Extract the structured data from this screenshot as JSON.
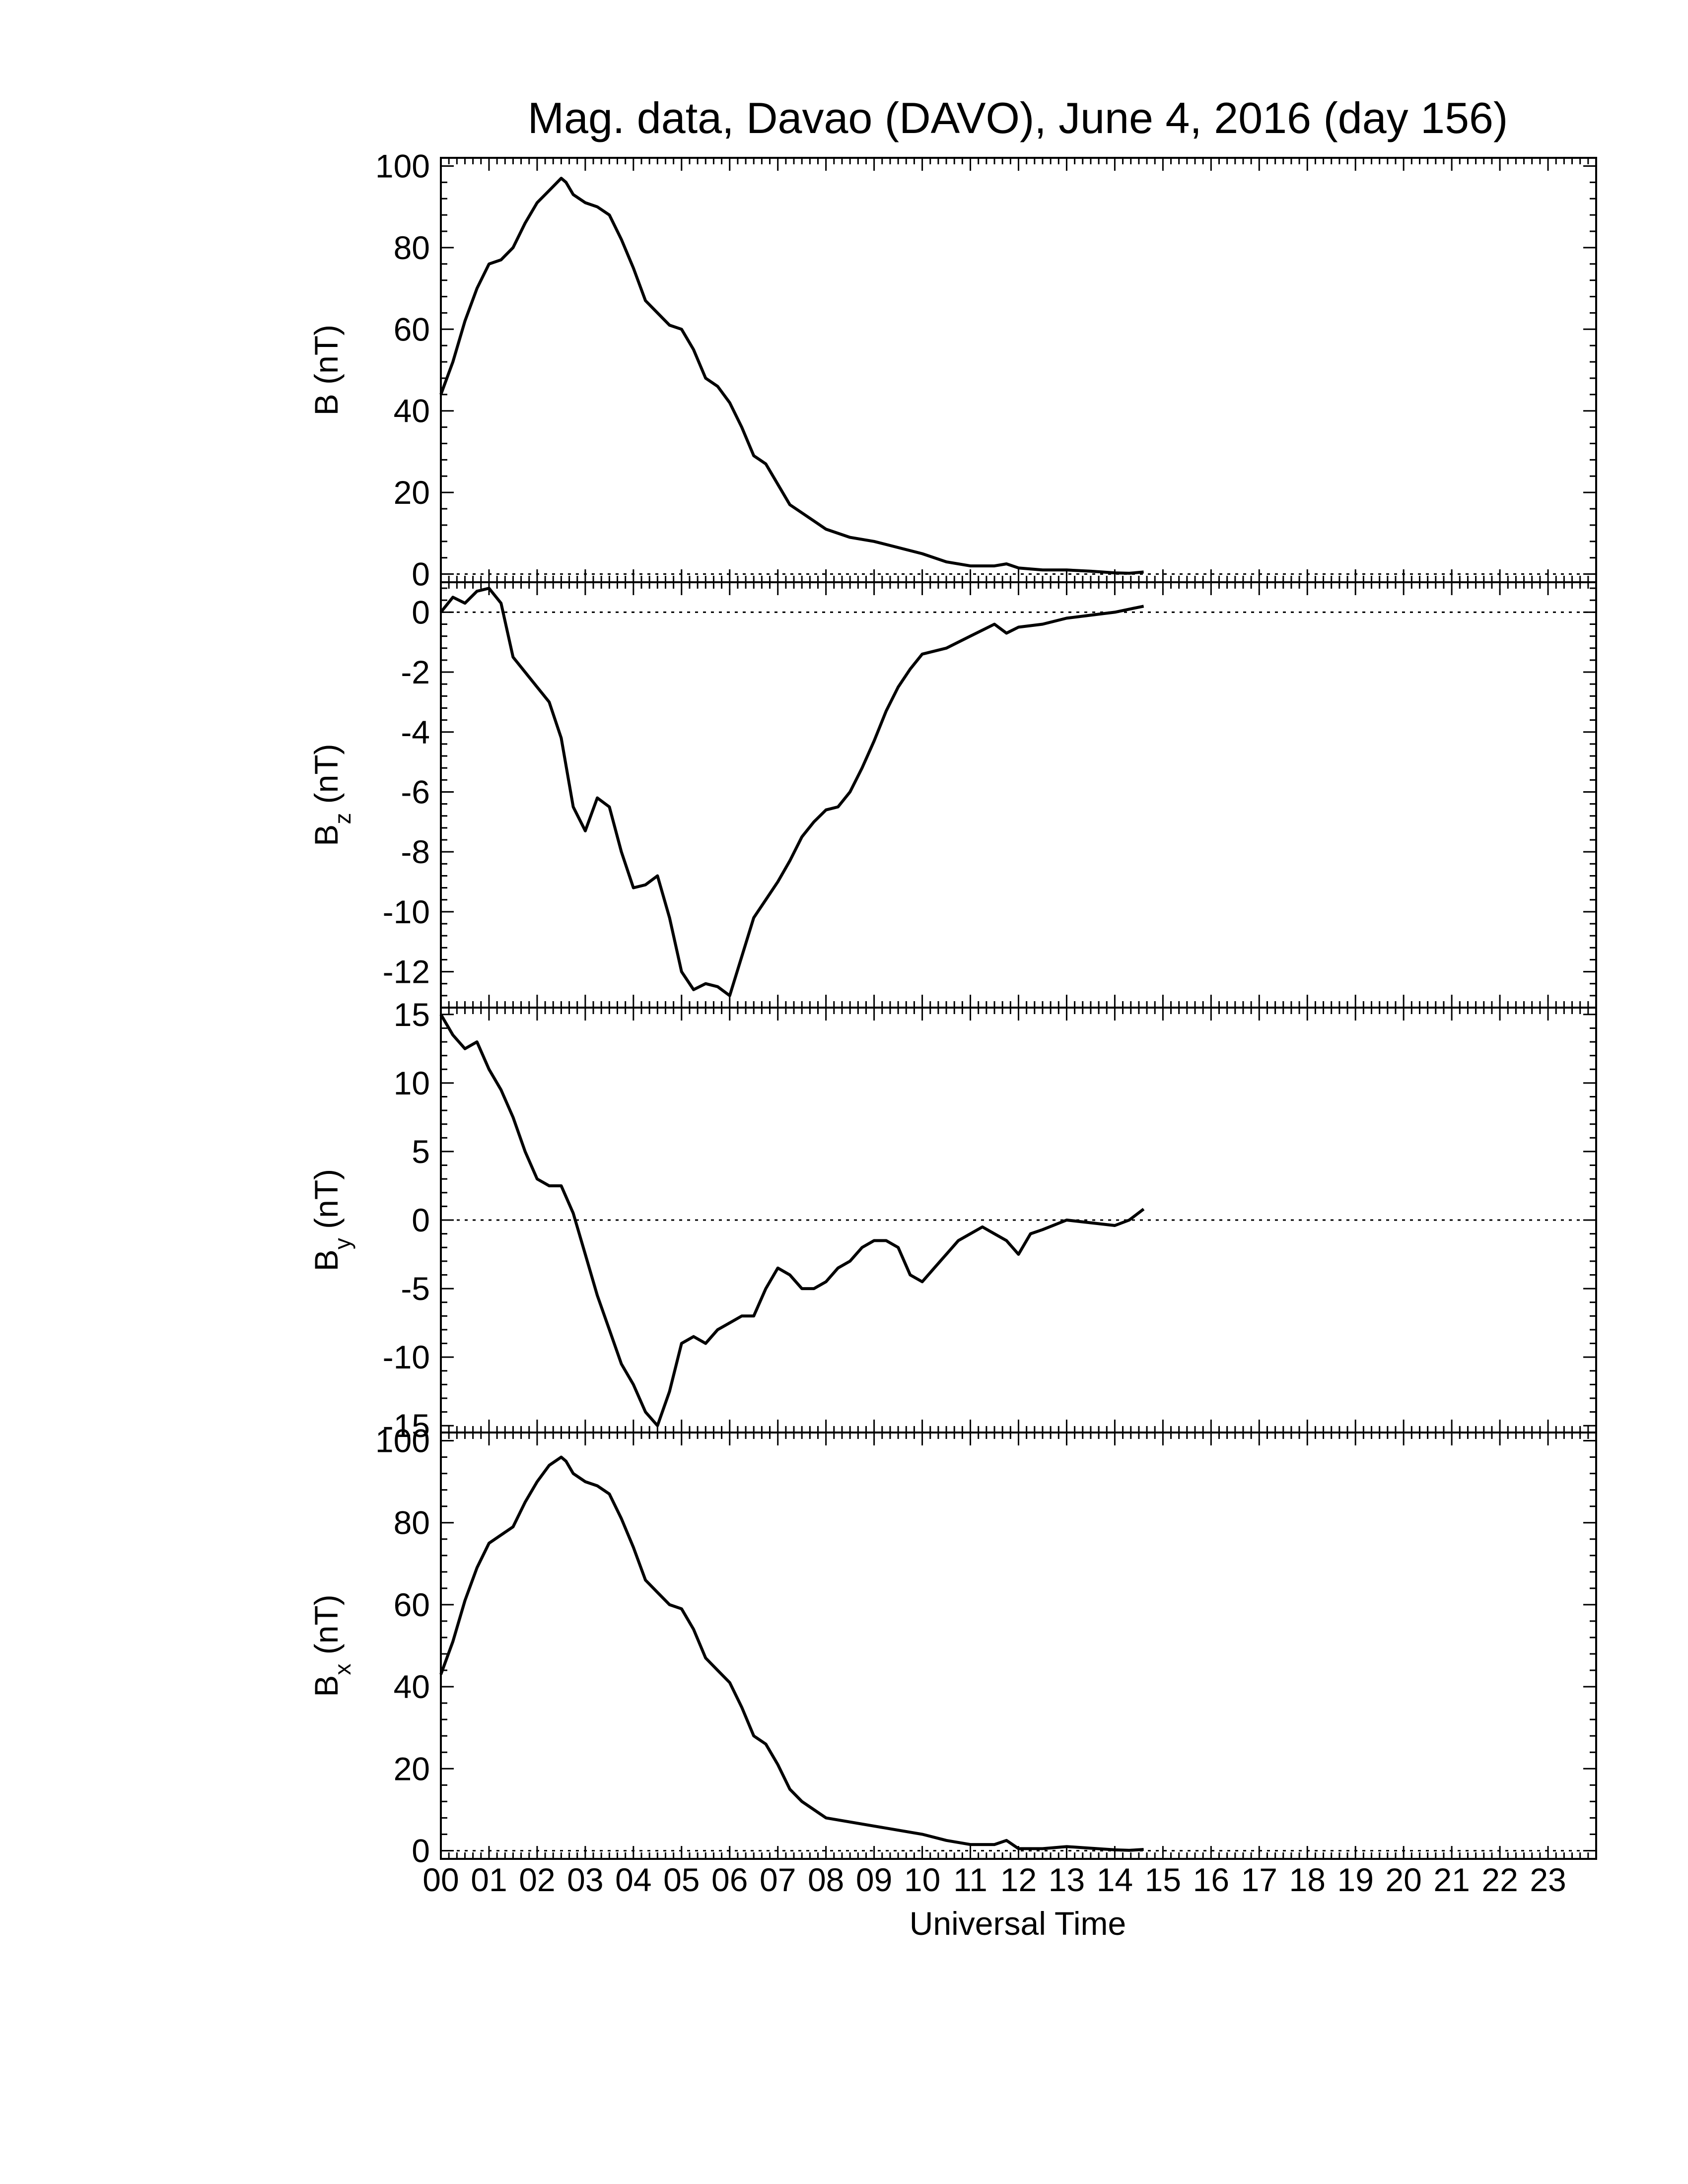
{
  "figure": {
    "title": "Mag. data, Davao (DAVO), June 4, 2016 (day 156)",
    "xlabel": "Universal Time",
    "x_tick_labels": [
      "00",
      "01",
      "02",
      "03",
      "04",
      "05",
      "06",
      "07",
      "08",
      "09",
      "10",
      "11",
      "12",
      "13",
      "14",
      "15",
      "16",
      "17",
      "18",
      "19",
      "20",
      "21",
      "22",
      "23"
    ],
    "line_color": "#000000"
  },
  "chart_data": [
    {
      "type": "line",
      "ylabel": {
        "main": "B",
        "sub": "",
        "unit": " (nT)"
      },
      "ylim": [
        -2,
        102
      ],
      "yticks": [
        0,
        20,
        40,
        60,
        80,
        100
      ],
      "xlim": [
        0,
        24
      ],
      "zero_line": true,
      "series": [
        {
          "x": [
            0,
            0.25,
            0.5,
            0.75,
            1,
            1.25,
            1.5,
            1.75,
            2,
            2.25,
            2.5,
            2.6,
            2.75,
            3,
            3.25,
            3.5,
            3.75,
            4,
            4.25,
            4.5,
            4.75,
            5,
            5.25,
            5.5,
            5.75,
            6,
            6.25,
            6.5,
            6.75,
            7,
            7.25,
            7.5,
            8,
            8.5,
            9,
            9.5,
            10,
            10.5,
            11,
            11.5,
            11.75,
            12,
            12.5,
            13,
            13.5,
            14,
            14.3,
            14.6
          ],
          "y": [
            44,
            52,
            62,
            70,
            76,
            77,
            80,
            86,
            91,
            94,
            97,
            96,
            93,
            91,
            90,
            88,
            82,
            75,
            67,
            64,
            61,
            60,
            55,
            48,
            46,
            42,
            36,
            29,
            27,
            22,
            17,
            15,
            11,
            9,
            8,
            6.5,
            5,
            3,
            2,
            2,
            2.5,
            1.5,
            1,
            1,
            0.7,
            0.3,
            0.2,
            0.5
          ]
        }
      ]
    },
    {
      "type": "line",
      "ylabel": {
        "main": "B",
        "sub": "z",
        "unit": " (nT)"
      },
      "ylim": [
        -13.2,
        1
      ],
      "yticks": [
        0,
        -2,
        -4,
        -6,
        -8,
        -10,
        -12
      ],
      "xlim": [
        0,
        24
      ],
      "zero_line": true,
      "series": [
        {
          "x": [
            0,
            0.25,
            0.5,
            0.75,
            1,
            1.25,
            1.5,
            1.75,
            2,
            2.25,
            2.5,
            2.75,
            3,
            3.25,
            3.5,
            3.75,
            4,
            4.25,
            4.5,
            4.75,
            5,
            5.25,
            5.5,
            5.75,
            6,
            6.25,
            6.5,
            6.75,
            7,
            7.25,
            7.5,
            7.75,
            8,
            8.25,
            8.5,
            8.75,
            9,
            9.25,
            9.5,
            9.75,
            10,
            10.5,
            11,
            11.5,
            11.75,
            12,
            12.5,
            13,
            13.5,
            14,
            14.3,
            14.6
          ],
          "y": [
            0,
            0.5,
            0.3,
            0.7,
            0.8,
            0.3,
            -1.5,
            -2,
            -2.5,
            -3,
            -4.2,
            -6.5,
            -7.3,
            -6.2,
            -6.5,
            -8,
            -9.2,
            -9.1,
            -8.8,
            -10.2,
            -12,
            -12.6,
            -12.4,
            -12.5,
            -12.8,
            -11.5,
            -10.2,
            -9.6,
            -9,
            -8.3,
            -7.5,
            -7,
            -6.6,
            -6.5,
            -6,
            -5.2,
            -4.3,
            -3.3,
            -2.5,
            -1.9,
            -1.4,
            -1.2,
            -0.8,
            -0.4,
            -0.7,
            -0.5,
            -0.4,
            -0.2,
            -0.1,
            0,
            0.1,
            0.2
          ]
        }
      ]
    },
    {
      "type": "line",
      "ylabel": {
        "main": "B",
        "sub": "y",
        "unit": " (nT)"
      },
      "ylim": [
        -15.5,
        15.5
      ],
      "yticks": [
        15,
        10,
        5,
        0,
        -5,
        -10,
        -15
      ],
      "ytick_labels": [
        "15",
        "10",
        "5",
        "0",
        "-5",
        "-10",
        "-15"
      ],
      "xlim": [
        0,
        24
      ],
      "zero_line": true,
      "series": [
        {
          "x": [
            0,
            0.25,
            0.5,
            0.75,
            1,
            1.25,
            1.5,
            1.75,
            2,
            2.25,
            2.5,
            2.75,
            3,
            3.25,
            3.5,
            3.75,
            4,
            4.25,
            4.5,
            4.75,
            5,
            5.25,
            5.5,
            5.75,
            6,
            6.25,
            6.5,
            6.75,
            7,
            7.25,
            7.5,
            7.75,
            8,
            8.25,
            8.5,
            8.75,
            9,
            9.25,
            9.5,
            9.75,
            10,
            10.25,
            10.5,
            10.75,
            11,
            11.25,
            11.5,
            11.75,
            12,
            12.25,
            12.5,
            13,
            13.5,
            14,
            14.3,
            14.6
          ],
          "y": [
            15,
            13.5,
            12.5,
            13,
            11,
            9.5,
            7.5,
            5,
            3,
            2.5,
            2.5,
            0.5,
            -2.5,
            -5.5,
            -8,
            -10.5,
            -12,
            -14,
            -15,
            -12.5,
            -9,
            -8.5,
            -9,
            -8,
            -7.5,
            -7,
            -7,
            -5,
            -3.5,
            -4,
            -5,
            -5,
            -4.5,
            -3.5,
            -3,
            -2,
            -1.5,
            -1.5,
            -2,
            -4,
            -4.5,
            -3.5,
            -2.5,
            -1.5,
            -1,
            -0.5,
            -1,
            -1.5,
            -2.5,
            -1,
            -0.7,
            0,
            -0.2,
            -0.4,
            0,
            0.8
          ]
        }
      ]
    },
    {
      "type": "line",
      "ylabel": {
        "main": "B",
        "sub": "x",
        "unit": " (nT)"
      },
      "ylim": [
        -2,
        102
      ],
      "yticks": [
        0,
        20,
        40,
        60,
        80,
        100
      ],
      "xlim": [
        0,
        24
      ],
      "zero_line": true,
      "series": [
        {
          "x": [
            0,
            0.25,
            0.5,
            0.75,
            1,
            1.25,
            1.5,
            1.75,
            2,
            2.25,
            2.5,
            2.6,
            2.75,
            3,
            3.25,
            3.5,
            3.75,
            4,
            4.25,
            4.5,
            4.75,
            5,
            5.25,
            5.5,
            5.75,
            6,
            6.25,
            6.5,
            6.75,
            7,
            7.25,
            7.5,
            8,
            8.5,
            9,
            9.5,
            10,
            10.5,
            11,
            11.5,
            11.75,
            12,
            12.5,
            13,
            13.5,
            14,
            14.3,
            14.6
          ],
          "y": [
            43,
            51,
            61,
            69,
            75,
            77,
            79,
            85,
            90,
            94,
            96,
            95,
            92,
            90,
            89,
            87,
            81,
            74,
            66,
            63,
            60,
            59,
            54,
            47,
            44,
            41,
            35,
            28,
            26,
            21,
            15,
            12,
            8,
            7,
            6,
            5,
            4,
            2.5,
            1.5,
            1.5,
            2.5,
            0.5,
            0.5,
            1,
            0.6,
            0.2,
            0.1,
            0.3
          ]
        }
      ]
    }
  ]
}
